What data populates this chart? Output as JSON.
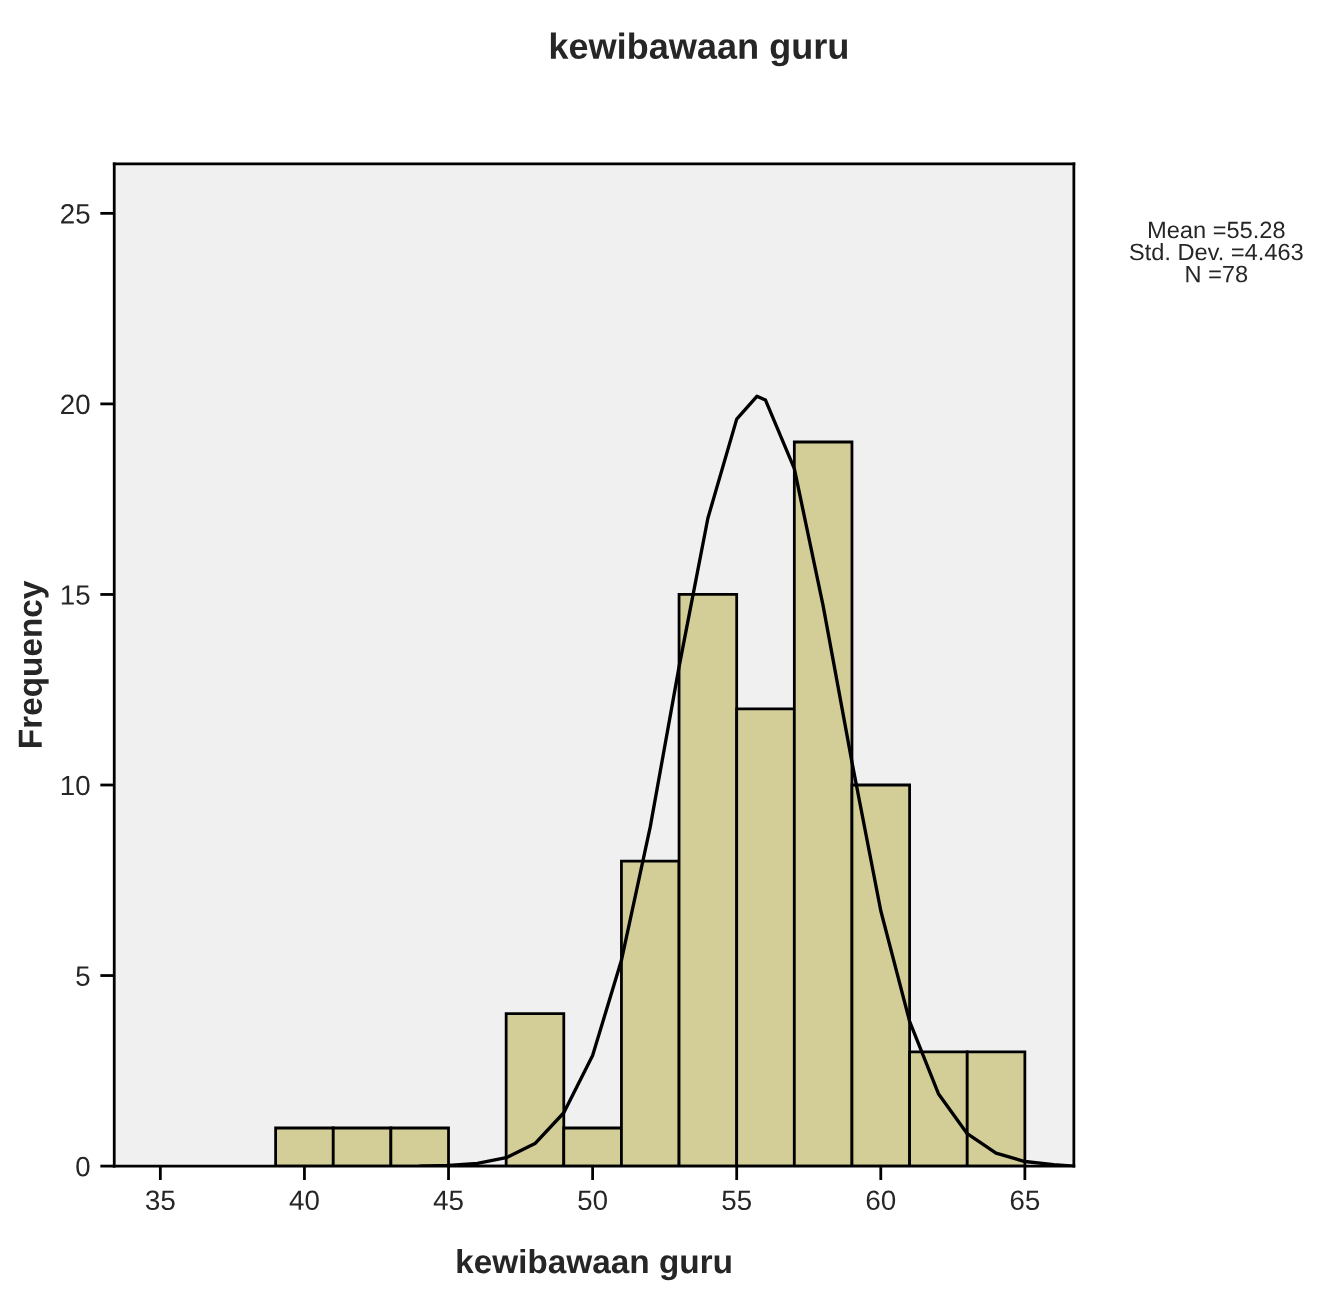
{
  "chart_data": {
    "type": "histogram",
    "title": "kewibawaan guru",
    "xlabel": "kewibawaan guru",
    "ylabel": "Frequency",
    "bins": [
      39,
      41,
      43,
      45,
      47,
      49,
      51,
      53,
      55,
      57,
      59,
      61,
      63,
      65
    ],
    "values": [
      1,
      1,
      1,
      0,
      4,
      1,
      8,
      15,
      12,
      19,
      10,
      3,
      3
    ],
    "color": "#d3ce97",
    "series": [
      {
        "type": "line",
        "color": "#000000",
        "x": [
          44,
          45,
          46,
          47,
          48,
          49,
          50,
          51,
          52,
          53,
          54,
          55,
          55.7,
          56,
          57,
          58,
          59,
          60,
          61,
          62,
          63,
          64,
          65,
          66,
          66.7
        ],
        "values": [
          0.0,
          0.02,
          0.07,
          0.22,
          0.59,
          1.4,
          2.9,
          5.4,
          8.9,
          13.1,
          17.0,
          19.6,
          20.2,
          20.1,
          18.3,
          14.7,
          10.6,
          6.7,
          3.8,
          1.9,
          0.85,
          0.34,
          0.12,
          0.04,
          0.0
        ]
      }
    ],
    "xlim": [
      33.4,
      66.7
    ],
    "xticks": [
      35,
      40,
      45,
      50,
      55,
      60,
      65
    ],
    "ylim": [
      0,
      26.3
    ],
    "yticks": [
      0,
      5,
      10,
      15,
      20,
      25
    ],
    "grid": false,
    "annotations": [
      "Mean =55.28\nStd. Dev. =4.463\nN =78"
    ]
  }
}
